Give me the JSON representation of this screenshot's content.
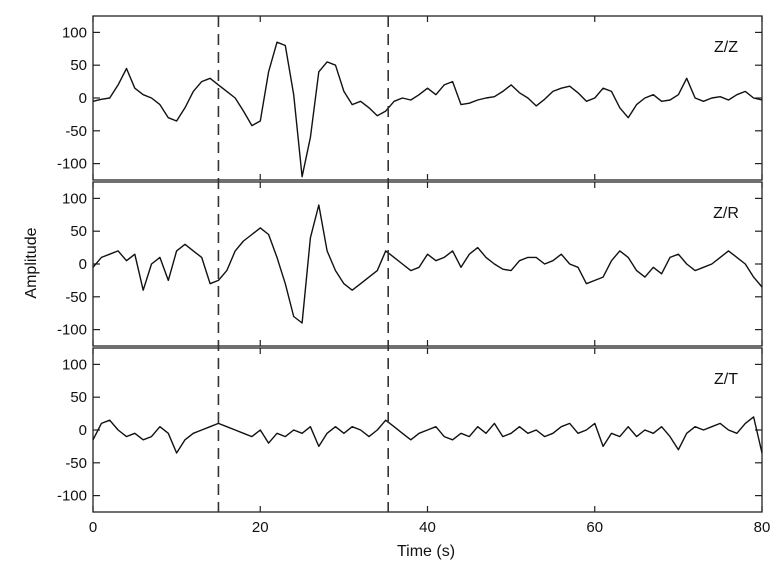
{
  "chart_data": {
    "type": "line",
    "xlabel": "Time (s)",
    "ylabel": "Amplitude",
    "xlim": [
      0,
      80
    ],
    "ylim": [
      -125,
      125
    ],
    "x_ticks": [
      0,
      20,
      40,
      60,
      80
    ],
    "y_ticks": [
      100,
      50,
      0,
      -50,
      -100
    ],
    "grid": false,
    "markers": [
      15,
      35.3
    ],
    "panels": [
      {
        "name": "Z/Z",
        "x": [
          0,
          1,
          2,
          3,
          4,
          5,
          6,
          7,
          8,
          9,
          10,
          11,
          12,
          13,
          14,
          15,
          16,
          17,
          18,
          19,
          20,
          21,
          22,
          23,
          24,
          25,
          26,
          27,
          28,
          29,
          30,
          31,
          32,
          33,
          34,
          35,
          36,
          37,
          38,
          39,
          40,
          41,
          42,
          43,
          44,
          45,
          46,
          47,
          48,
          49,
          50,
          51,
          52,
          53,
          54,
          55,
          56,
          57,
          58,
          59,
          60,
          61,
          62,
          63,
          64,
          65,
          66,
          67,
          68,
          69,
          70,
          71,
          72,
          73,
          74,
          75,
          76,
          77,
          78,
          79,
          80
        ],
        "values": [
          -5,
          -2,
          0,
          20,
          45,
          15,
          5,
          0,
          -10,
          -30,
          -35,
          -15,
          10,
          25,
          30,
          20,
          10,
          0,
          -20,
          -42,
          -35,
          40,
          85,
          80,
          5,
          -120,
          -60,
          40,
          55,
          50,
          10,
          -10,
          -5,
          -15,
          -27,
          -20,
          -5,
          0,
          -3,
          5,
          15,
          5,
          20,
          25,
          -10,
          -8,
          -3,
          0,
          2,
          10,
          20,
          8,
          0,
          -12,
          -2,
          10,
          15,
          18,
          8,
          -5,
          0,
          15,
          10,
          -15,
          -30,
          -10,
          0,
          5,
          -5,
          -3,
          5,
          30,
          0,
          -5,
          0,
          2,
          -3,
          5,
          10,
          0,
          -3
        ]
      },
      {
        "name": "Z/R",
        "x": [
          0,
          1,
          2,
          3,
          4,
          5,
          6,
          7,
          8,
          9,
          10,
          11,
          12,
          13,
          14,
          15,
          16,
          17,
          18,
          19,
          20,
          21,
          22,
          23,
          24,
          25,
          26,
          27,
          28,
          29,
          30,
          31,
          32,
          33,
          34,
          35,
          36,
          37,
          38,
          39,
          40,
          41,
          42,
          43,
          44,
          45,
          46,
          47,
          48,
          49,
          50,
          51,
          52,
          53,
          54,
          55,
          56,
          57,
          58,
          59,
          60,
          61,
          62,
          63,
          64,
          65,
          66,
          67,
          68,
          69,
          70,
          71,
          72,
          73,
          74,
          75,
          76,
          77,
          78,
          79,
          80
        ],
        "values": [
          -5,
          10,
          15,
          20,
          5,
          15,
          -40,
          0,
          10,
          -25,
          20,
          30,
          20,
          10,
          -30,
          -25,
          -10,
          20,
          35,
          45,
          55,
          45,
          10,
          -30,
          -80,
          -90,
          40,
          90,
          20,
          -10,
          -30,
          -40,
          -30,
          -20,
          -10,
          20,
          10,
          0,
          -10,
          -5,
          15,
          5,
          10,
          20,
          -5,
          15,
          25,
          10,
          0,
          -8,
          -10,
          5,
          10,
          10,
          0,
          5,
          15,
          0,
          -5,
          -30,
          -25,
          -20,
          5,
          20,
          10,
          -10,
          -20,
          -5,
          -15,
          10,
          15,
          0,
          -10,
          -5,
          0,
          10,
          20,
          10,
          0,
          -20,
          -35
        ]
      },
      {
        "name": "Z/T",
        "x": [
          0,
          1,
          2,
          3,
          4,
          5,
          6,
          7,
          8,
          9,
          10,
          11,
          12,
          13,
          14,
          15,
          16,
          17,
          18,
          19,
          20,
          21,
          22,
          23,
          24,
          25,
          26,
          27,
          28,
          29,
          30,
          31,
          32,
          33,
          34,
          35,
          36,
          37,
          38,
          39,
          40,
          41,
          42,
          43,
          44,
          45,
          46,
          47,
          48,
          49,
          50,
          51,
          52,
          53,
          54,
          55,
          56,
          57,
          58,
          59,
          60,
          61,
          62,
          63,
          64,
          65,
          66,
          67,
          68,
          69,
          70,
          71,
          72,
          73,
          74,
          75,
          76,
          77,
          78,
          79,
          80
        ],
        "values": [
          -15,
          10,
          15,
          0,
          -10,
          -5,
          -15,
          -10,
          5,
          -5,
          -35,
          -15,
          -5,
          0,
          5,
          10,
          5,
          0,
          -5,
          -10,
          0,
          -20,
          -5,
          -10,
          0,
          -5,
          5,
          -25,
          -5,
          5,
          -5,
          5,
          0,
          -10,
          0,
          15,
          5,
          -5,
          -15,
          -5,
          0,
          5,
          -10,
          -15,
          -5,
          -10,
          5,
          -5,
          10,
          -10,
          -5,
          5,
          -5,
          0,
          -10,
          -5,
          5,
          10,
          -5,
          0,
          10,
          -25,
          -5,
          -10,
          5,
          -10,
          0,
          -5,
          5,
          -10,
          -30,
          -5,
          5,
          0,
          5,
          10,
          0,
          -5,
          10,
          20,
          -35
        ]
      }
    ]
  }
}
